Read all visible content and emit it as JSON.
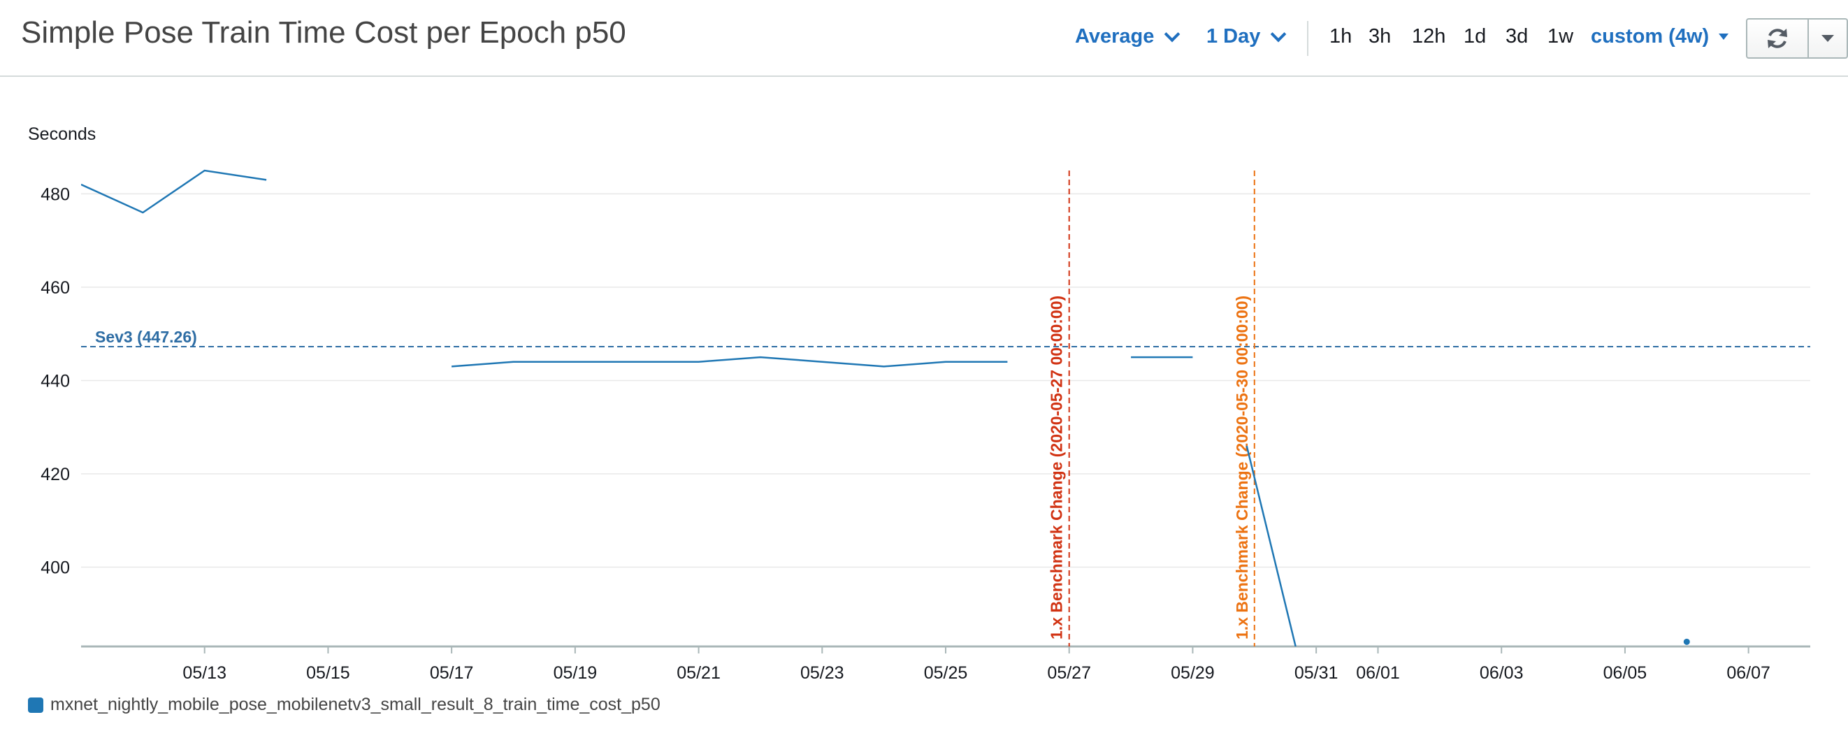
{
  "header": {
    "title": "Simple Pose Train Time Cost per Epoch p50",
    "statistic_label": "Average",
    "period_label": "1 Day",
    "ranges": [
      "1h",
      "3h",
      "12h",
      "1d",
      "3d",
      "1w"
    ],
    "custom_range_label": "custom (4w)"
  },
  "icons": {
    "refresh": "refresh-icon",
    "more": "caret-down-icon"
  },
  "colors": {
    "series": "#1f77b4",
    "accent": "#1f6fbf",
    "annotation_red": "#d13212",
    "annotation_orange": "#ec7211",
    "threshold": "#2e6da4"
  },
  "chart_data": {
    "type": "line",
    "ylabel": "Seconds",
    "ylim": [
      383,
      485
    ],
    "xlim": [
      "2020-05-11",
      "2020-06-08"
    ],
    "x_ticks": [
      "05/13",
      "05/15",
      "05/17",
      "05/19",
      "05/21",
      "05/23",
      "05/25",
      "05/27",
      "05/29",
      "05/31",
      "06/01",
      "06/03",
      "06/05",
      "06/07"
    ],
    "x_tick_dates": [
      "2020-05-13",
      "2020-05-15",
      "2020-05-17",
      "2020-05-19",
      "2020-05-21",
      "2020-05-23",
      "2020-05-25",
      "2020-05-27",
      "2020-05-29",
      "2020-05-31",
      "2020-06-01",
      "2020-06-03",
      "2020-06-05",
      "2020-06-07"
    ],
    "y_ticks": [
      400,
      420,
      440,
      460,
      480
    ],
    "grid": true,
    "legend_position": "bottom-left",
    "series": [
      {
        "name": "mxnet_nightly_mobile_pose_mobilenetv3_small_result_8_train_time_cost_p50",
        "segments": [
          [
            [
              "2020-05-11",
              482
            ],
            [
              "2020-05-12",
              476
            ],
            [
              "2020-05-13",
              485
            ],
            [
              "2020-05-14",
              483
            ]
          ],
          [
            [
              "2020-05-17",
              443
            ],
            [
              "2020-05-18",
              444
            ],
            [
              "2020-05-19",
              444
            ],
            [
              "2020-05-20",
              444
            ],
            [
              "2020-05-21",
              444
            ],
            [
              "2020-05-22",
              445
            ],
            [
              "2020-05-23",
              444
            ],
            [
              "2020-05-24",
              443
            ],
            [
              "2020-05-25",
              444
            ],
            [
              "2020-05-26",
              444
            ]
          ],
          [
            [
              "2020-05-28",
              445
            ],
            [
              "2020-05-29",
              445
            ]
          ],
          [
            [
              "2020-05-29T21:00",
              426
            ],
            [
              "2020-05-30T16:00",
              383
            ]
          ],
          [
            [
              "2020-06-06",
              384
            ]
          ]
        ]
      }
    ],
    "thresholds": [
      {
        "label": "Sev3 (447.26)",
        "value": 447.26
      }
    ],
    "annotations": [
      {
        "label": "1.x Benchmark Change (2020-05-27 00:00:00)",
        "x": "2020-05-27"
      },
      {
        "label": "1.x Benchmark Change (2020-05-30 00:00:00)",
        "x": "2020-05-30"
      }
    ]
  }
}
